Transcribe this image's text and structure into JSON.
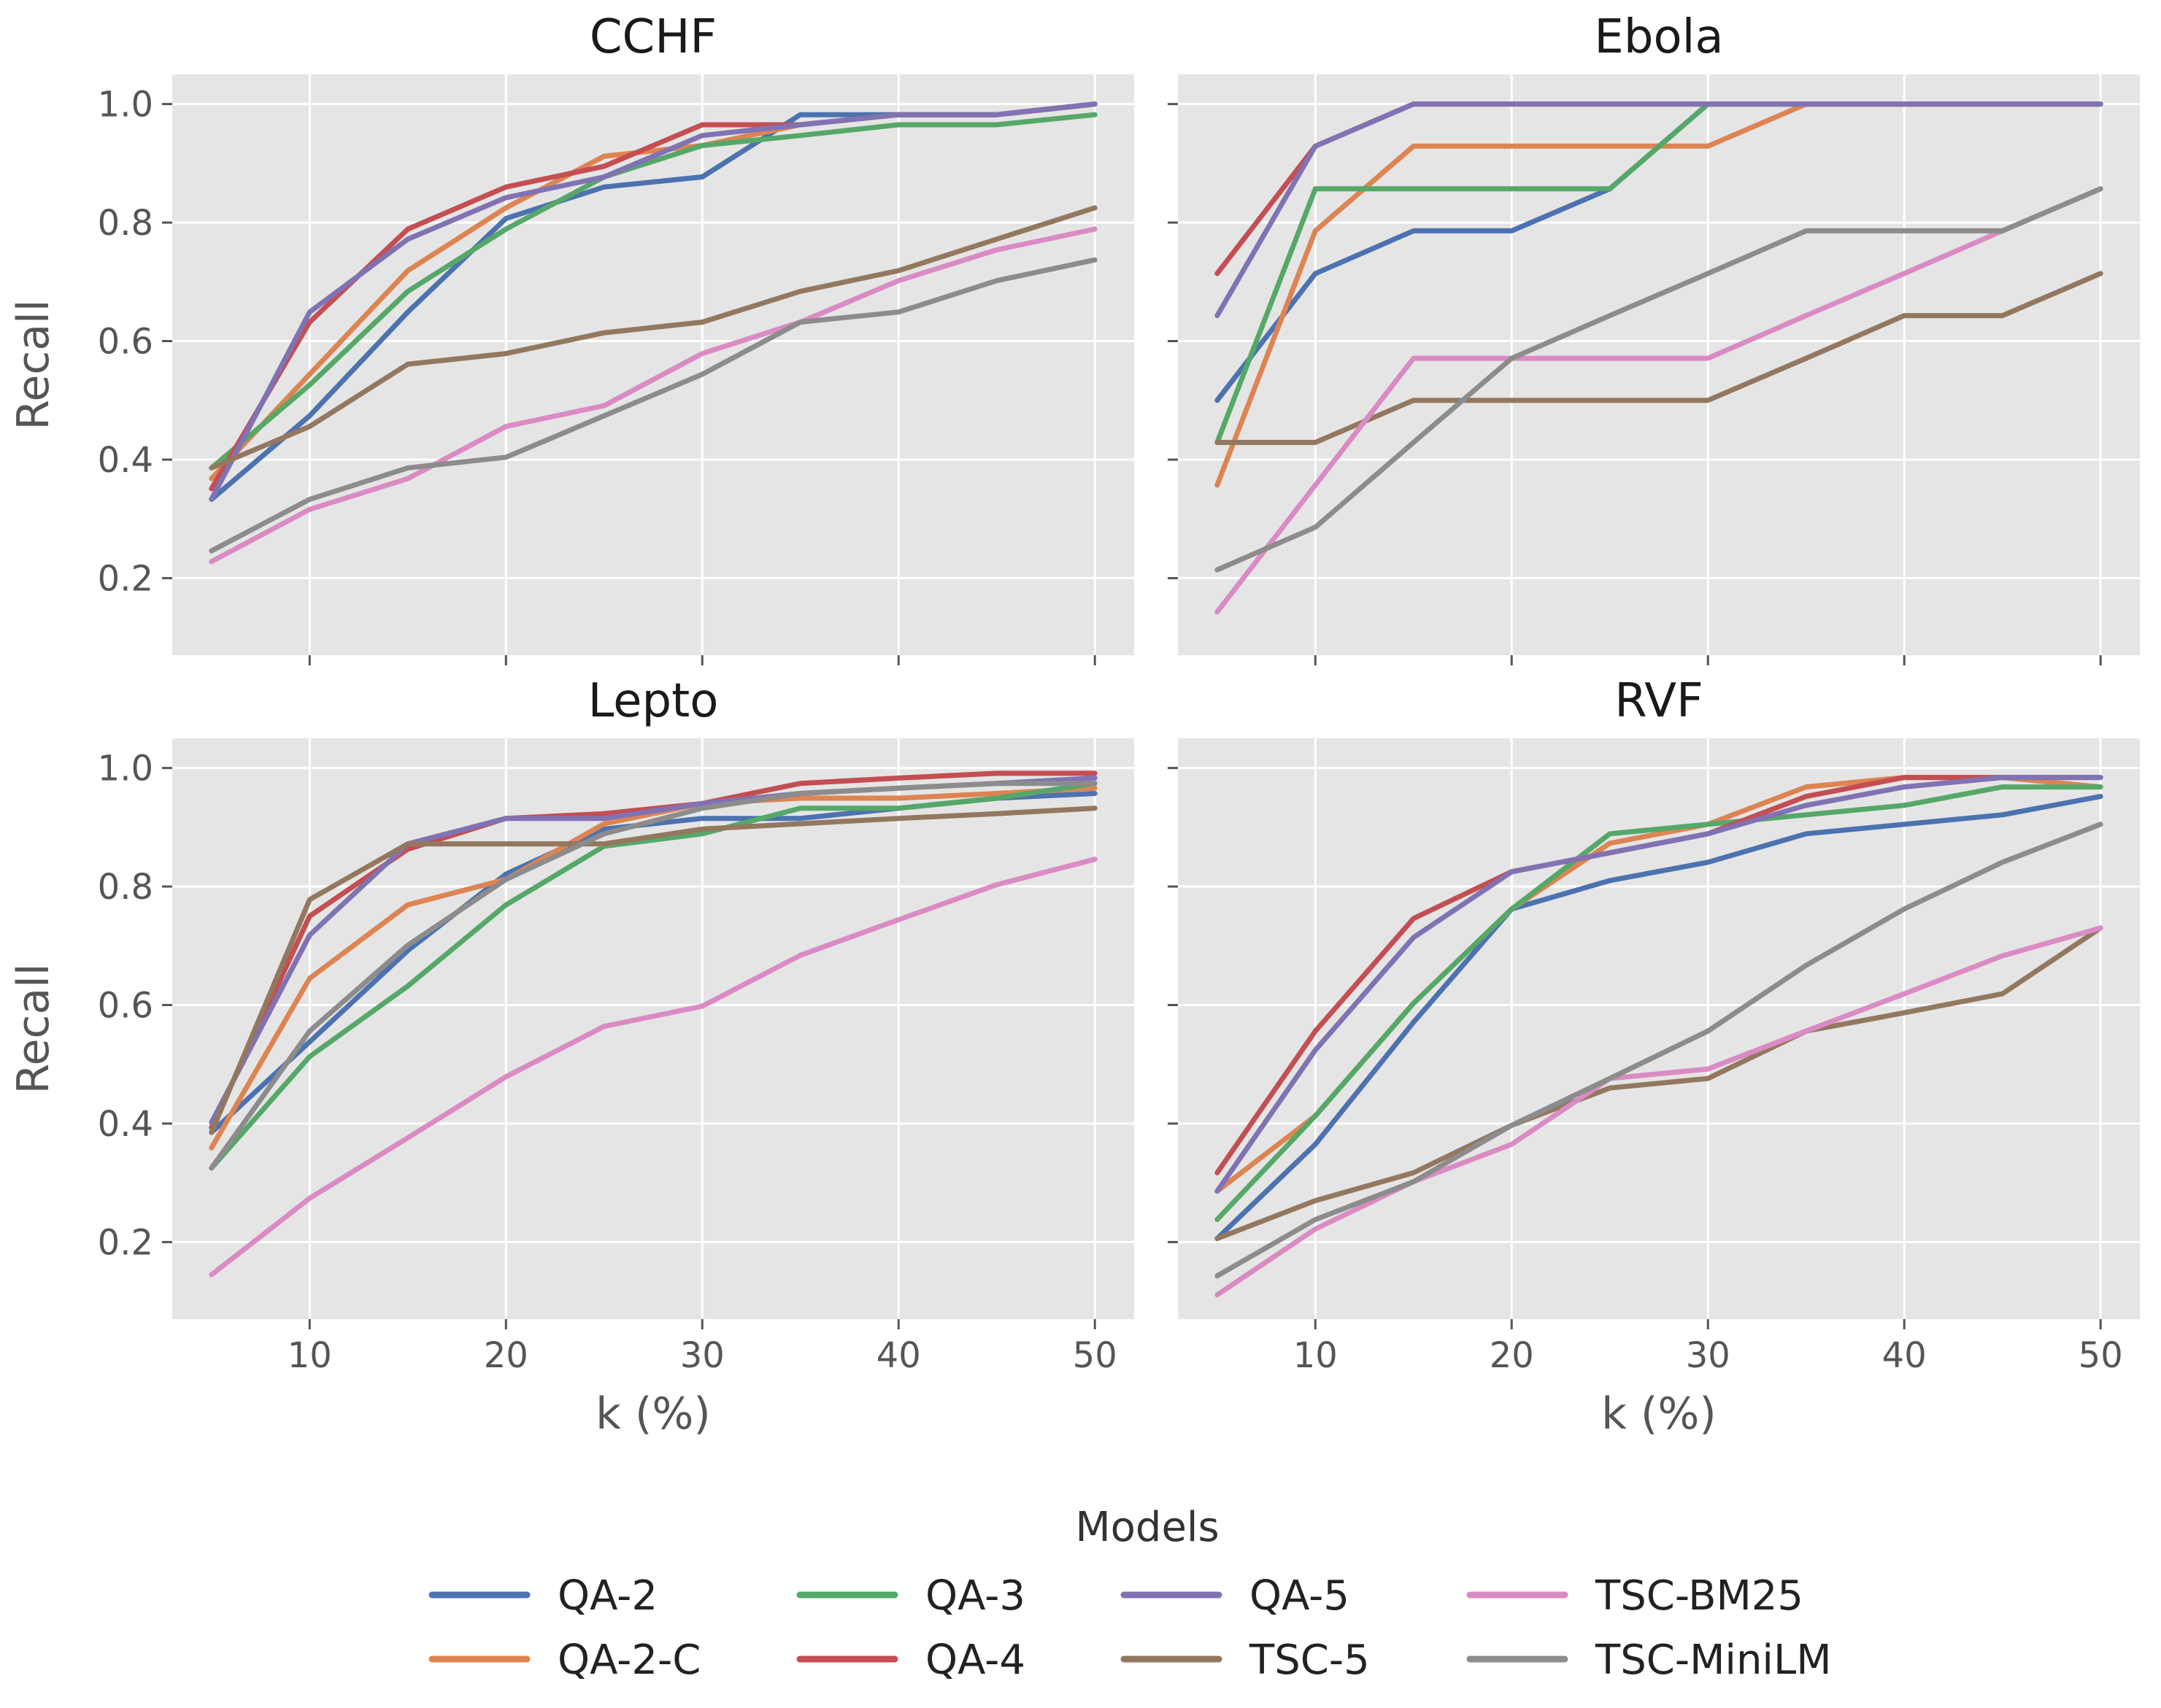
{
  "legend": {
    "title": "Models"
  },
  "colors": {
    "QA-2": "#4c72b0",
    "QA-2-C": "#dd8452",
    "QA-3": "#55a868",
    "QA-4": "#c44e52",
    "QA-5": "#8172b3",
    "TSC-5": "#937860",
    "TSC-BM25": "#da8bc3",
    "TSC-MiniLM": "#8c8c8c"
  },
  "chart_data": [
    {
      "type": "line",
      "title": "CCHF",
      "xlabel": "",
      "ylabel": "Recall",
      "xlim": [
        3,
        52
      ],
      "ylim": [
        0.07,
        1.05
      ],
      "xticks": [
        10,
        20,
        30,
        40,
        50
      ],
      "yticks": [
        0.2,
        0.4,
        0.6,
        0.8,
        1.0
      ],
      "x": [
        5,
        10,
        15,
        20,
        25,
        30,
        35,
        40,
        45,
        50
      ],
      "series": [
        {
          "name": "QA-2",
          "values": [
            0.333,
            0.474,
            0.649,
            0.807,
            0.86,
            0.877,
            0.982,
            0.982,
            0.982,
            1.0
          ]
        },
        {
          "name": "QA-2-C",
          "values": [
            0.368,
            0.544,
            0.719,
            0.825,
            0.912,
            0.93,
            0.965,
            0.982,
            0.982,
            1.0
          ]
        },
        {
          "name": "QA-3",
          "values": [
            0.386,
            0.526,
            0.684,
            0.789,
            0.877,
            0.93,
            0.947,
            0.965,
            0.965,
            0.982
          ]
        },
        {
          "name": "QA-4",
          "values": [
            0.351,
            0.632,
            0.789,
            0.86,
            0.895,
            0.965,
            0.965,
            0.982,
            0.982,
            1.0
          ]
        },
        {
          "name": "QA-5",
          "values": [
            0.333,
            0.649,
            0.772,
            0.842,
            0.877,
            0.947,
            0.965,
            0.982,
            0.982,
            1.0
          ]
        },
        {
          "name": "TSC-5",
          "values": [
            0.386,
            0.456,
            0.561,
            0.579,
            0.614,
            0.632,
            0.684,
            0.719,
            0.772,
            0.825
          ]
        },
        {
          "name": "TSC-BM25",
          "values": [
            0.228,
            0.316,
            0.368,
            0.456,
            0.491,
            0.579,
            0.632,
            0.702,
            0.754,
            0.789
          ]
        },
        {
          "name": "TSC-MiniLM",
          "values": [
            0.246,
            0.333,
            0.386,
            0.404,
            0.474,
            0.544,
            0.632,
            0.649,
            0.702,
            0.737
          ]
        }
      ]
    },
    {
      "type": "line",
      "title": "Ebola",
      "xlabel": "",
      "ylabel": "",
      "xlim": [
        3,
        52
      ],
      "ylim": [
        0.07,
        1.05
      ],
      "xticks": [
        10,
        20,
        30,
        40,
        50
      ],
      "yticks": [
        0.2,
        0.4,
        0.6,
        0.8,
        1.0
      ],
      "x": [
        5,
        10,
        15,
        20,
        25,
        30,
        35,
        40,
        45,
        50
      ],
      "series": [
        {
          "name": "QA-2",
          "values": [
            0.5,
            0.714,
            0.786,
            0.786,
            0.857,
            1.0,
            1.0,
            1.0,
            1.0,
            1.0
          ]
        },
        {
          "name": "QA-2-C",
          "values": [
            0.357,
            0.786,
            0.929,
            0.929,
            0.929,
            0.929,
            1.0,
            1.0,
            1.0,
            1.0
          ]
        },
        {
          "name": "QA-3",
          "values": [
            0.429,
            0.857,
            0.857,
            0.857,
            0.857,
            1.0,
            1.0,
            1.0,
            1.0,
            1.0
          ]
        },
        {
          "name": "QA-4",
          "values": [
            0.714,
            0.929,
            1.0,
            1.0,
            1.0,
            1.0,
            1.0,
            1.0,
            1.0,
            1.0
          ]
        },
        {
          "name": "QA-5",
          "values": [
            0.643,
            0.929,
            1.0,
            1.0,
            1.0,
            1.0,
            1.0,
            1.0,
            1.0,
            1.0
          ]
        },
        {
          "name": "TSC-5",
          "values": [
            0.429,
            0.429,
            0.5,
            0.5,
            0.5,
            0.5,
            0.571,
            0.643,
            0.643,
            0.714
          ]
        },
        {
          "name": "TSC-BM25",
          "values": [
            0.143,
            0.357,
            0.571,
            0.571,
            0.571,
            0.571,
            0.643,
            0.714,
            0.786,
            0.857
          ]
        },
        {
          "name": "TSC-MiniLM",
          "values": [
            0.214,
            0.286,
            0.429,
            0.571,
            0.643,
            0.714,
            0.786,
            0.786,
            0.786,
            0.857
          ]
        }
      ]
    },
    {
      "type": "line",
      "title": "Lepto",
      "xlabel": "k (%)",
      "ylabel": "Recall",
      "xlim": [
        3,
        52
      ],
      "ylim": [
        0.07,
        1.05
      ],
      "xticks": [
        10,
        20,
        30,
        40,
        50
      ],
      "yticks": [
        0.2,
        0.4,
        0.6,
        0.8,
        1.0
      ],
      "x": [
        5,
        10,
        15,
        20,
        25,
        30,
        35,
        40,
        45,
        50
      ],
      "series": [
        {
          "name": "QA-2",
          "values": [
            0.385,
            0.538,
            0.692,
            0.821,
            0.897,
            0.915,
            0.915,
            0.932,
            0.949,
            0.957
          ]
        },
        {
          "name": "QA-2-C",
          "values": [
            0.359,
            0.645,
            0.769,
            0.812,
            0.906,
            0.94,
            0.949,
            0.949,
            0.957,
            0.966
          ]
        },
        {
          "name": "QA-3",
          "values": [
            0.325,
            0.513,
            0.632,
            0.769,
            0.868,
            0.889,
            0.932,
            0.932,
            0.949,
            0.974
          ]
        },
        {
          "name": "QA-4",
          "values": [
            0.393,
            0.75,
            0.863,
            0.915,
            0.923,
            0.94,
            0.974,
            0.983,
            0.991,
            0.991
          ]
        },
        {
          "name": "QA-5",
          "values": [
            0.402,
            0.718,
            0.872,
            0.915,
            0.915,
            0.94,
            0.957,
            0.966,
            0.974,
            0.983
          ]
        },
        {
          "name": "TSC-5",
          "values": [
            0.385,
            0.778,
            0.872,
            0.872,
            0.872,
            0.897,
            0.906,
            0.915,
            0.923,
            0.932
          ]
        },
        {
          "name": "TSC-BM25",
          "values": [
            0.145,
            0.274,
            0.376,
            0.479,
            0.564,
            0.598,
            0.684,
            0.744,
            0.803,
            0.846
          ]
        },
        {
          "name": "TSC-MiniLM",
          "values": [
            0.325,
            0.556,
            0.701,
            0.812,
            0.889,
            0.932,
            0.957,
            0.966,
            0.974,
            0.974
          ]
        }
      ]
    },
    {
      "type": "line",
      "title": "RVF",
      "xlabel": "k (%)",
      "ylabel": "",
      "xlim": [
        3,
        52
      ],
      "ylim": [
        0.07,
        1.05
      ],
      "xticks": [
        10,
        20,
        30,
        40,
        50
      ],
      "yticks": [
        0.2,
        0.4,
        0.6,
        0.8,
        1.0
      ],
      "x": [
        5,
        10,
        15,
        20,
        25,
        30,
        35,
        40,
        45,
        50
      ],
      "series": [
        {
          "name": "QA-2",
          "values": [
            0.206,
            0.365,
            0.571,
            0.762,
            0.81,
            0.841,
            0.889,
            0.905,
            0.921,
            0.952
          ]
        },
        {
          "name": "QA-2-C",
          "values": [
            0.286,
            0.413,
            0.603,
            0.762,
            0.873,
            0.905,
            0.968,
            0.984,
            0.984,
            0.968
          ]
        },
        {
          "name": "QA-3",
          "values": [
            0.238,
            0.413,
            0.603,
            0.762,
            0.889,
            0.905,
            0.921,
            0.937,
            0.968,
            0.968
          ]
        },
        {
          "name": "QA-4",
          "values": [
            0.317,
            0.556,
            0.746,
            0.825,
            0.857,
            0.889,
            0.952,
            0.984,
            0.984,
            0.984
          ]
        },
        {
          "name": "QA-5",
          "values": [
            0.286,
            0.524,
            0.714,
            0.825,
            0.857,
            0.889,
            0.937,
            0.968,
            0.984,
            0.984
          ]
        },
        {
          "name": "TSC-5",
          "values": [
            0.206,
            0.27,
            0.317,
            0.397,
            0.46,
            0.476,
            0.556,
            0.587,
            0.619,
            0.73
          ]
        },
        {
          "name": "TSC-BM25",
          "values": [
            0.111,
            0.222,
            0.302,
            0.365,
            0.476,
            0.492,
            0.556,
            0.619,
            0.683,
            0.73
          ]
        },
        {
          "name": "TSC-MiniLM",
          "values": [
            0.143,
            0.238,
            0.302,
            0.397,
            0.476,
            0.556,
            0.667,
            0.762,
            0.841,
            0.905
          ]
        }
      ]
    }
  ]
}
